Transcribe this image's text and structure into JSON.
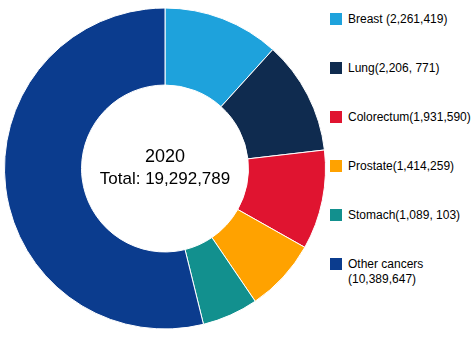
{
  "chart_data": {
    "type": "doughnut",
    "title": "2020",
    "subtitle": "Total: 19,292,789",
    "categories": [
      "Breast (2,261,419)",
      "Lung(2,206, 771)",
      "Colorectum(1,931,590)",
      "Prostate(1,414,259)",
      "Stomach(1,089, 103)",
      "Other cancers (10,389,647)"
    ],
    "values": [
      2261419,
      2206771,
      1931590,
      1414259,
      1089103,
      10389647
    ],
    "colors": [
      "#1ea2dc",
      "#0f2b4f",
      "#e01430",
      "#ffa200",
      "#12908e",
      "#0b3c8e"
    ],
    "legend": "right"
  }
}
